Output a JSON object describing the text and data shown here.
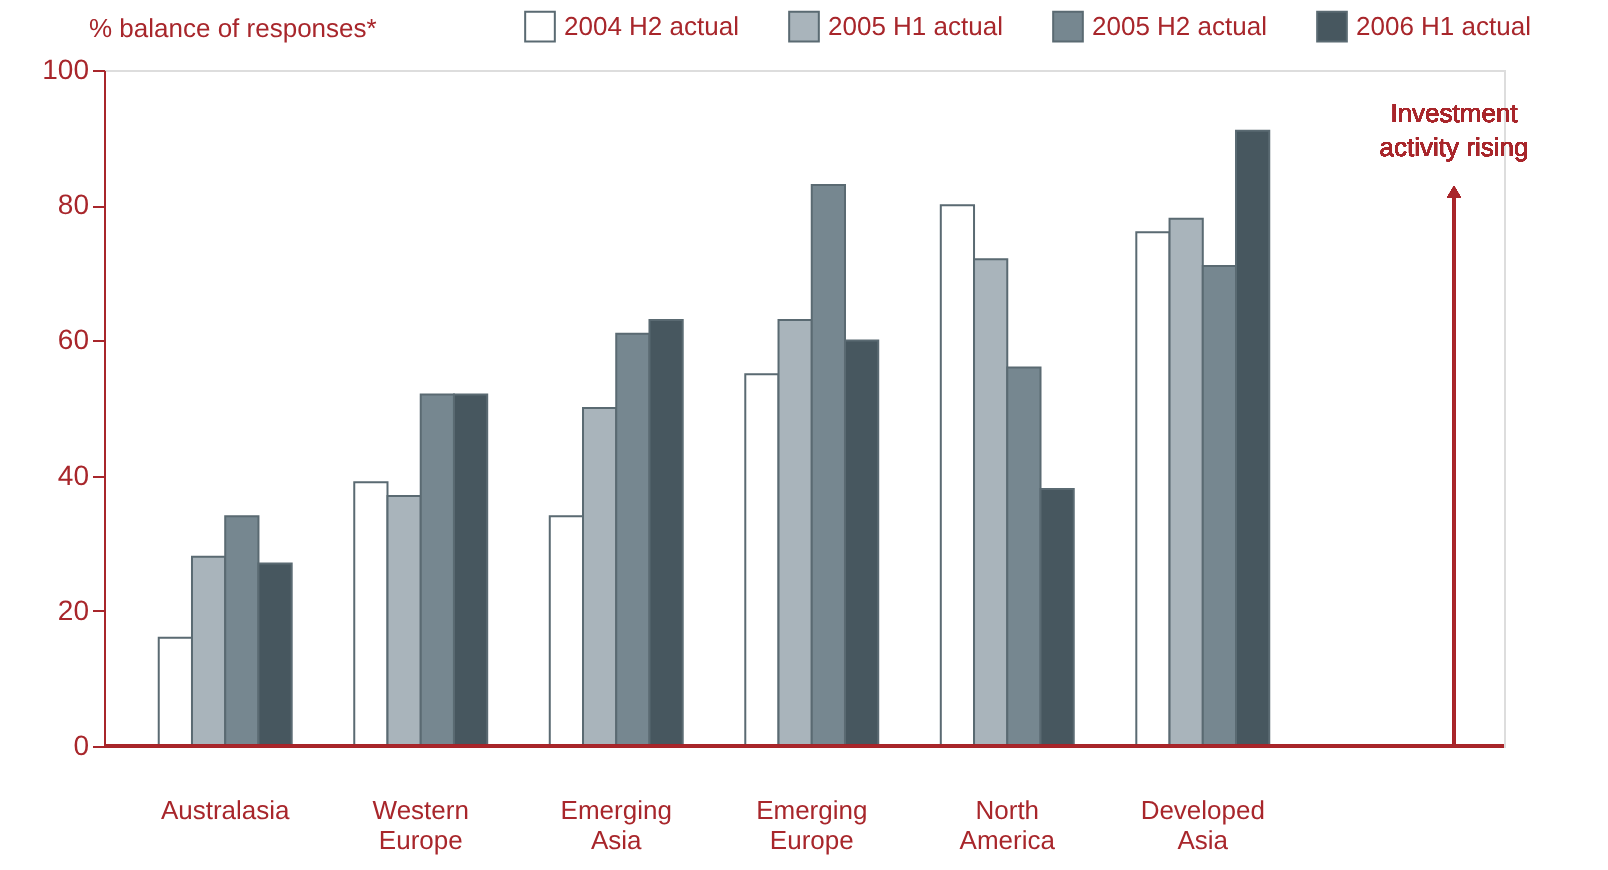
{
  "chart_data": {
    "type": "bar",
    "ylabel": "% balance of responses*",
    "categories": [
      "Australasia",
      "Western Europe",
      "Emerging Asia",
      "Emerging Europe",
      "North America",
      "Developed Asia"
    ],
    "series": [
      {
        "name": "2004 H2 actual",
        "color": "#ffffff",
        "values": [
          16,
          39,
          34,
          55,
          80,
          76
        ]
      },
      {
        "name": "2005 H1 actual",
        "color": "#a9b4bb",
        "values": [
          28,
          37,
          50,
          63,
          72,
          78
        ]
      },
      {
        "name": "2005 H2 actual",
        "color": "#768790",
        "values": [
          34,
          52,
          61,
          83,
          56,
          71
        ]
      },
      {
        "name": "2006 H1 actual",
        "color": "#47575f",
        "values": [
          27,
          52,
          63,
          60,
          38,
          91
        ]
      }
    ],
    "ylim": [
      0,
      100
    ],
    "yticks": [
      0,
      20,
      40,
      60,
      80,
      100
    ],
    "grid": false,
    "legend": "top",
    "annotations": [
      "Investment activity rising"
    ]
  }
}
